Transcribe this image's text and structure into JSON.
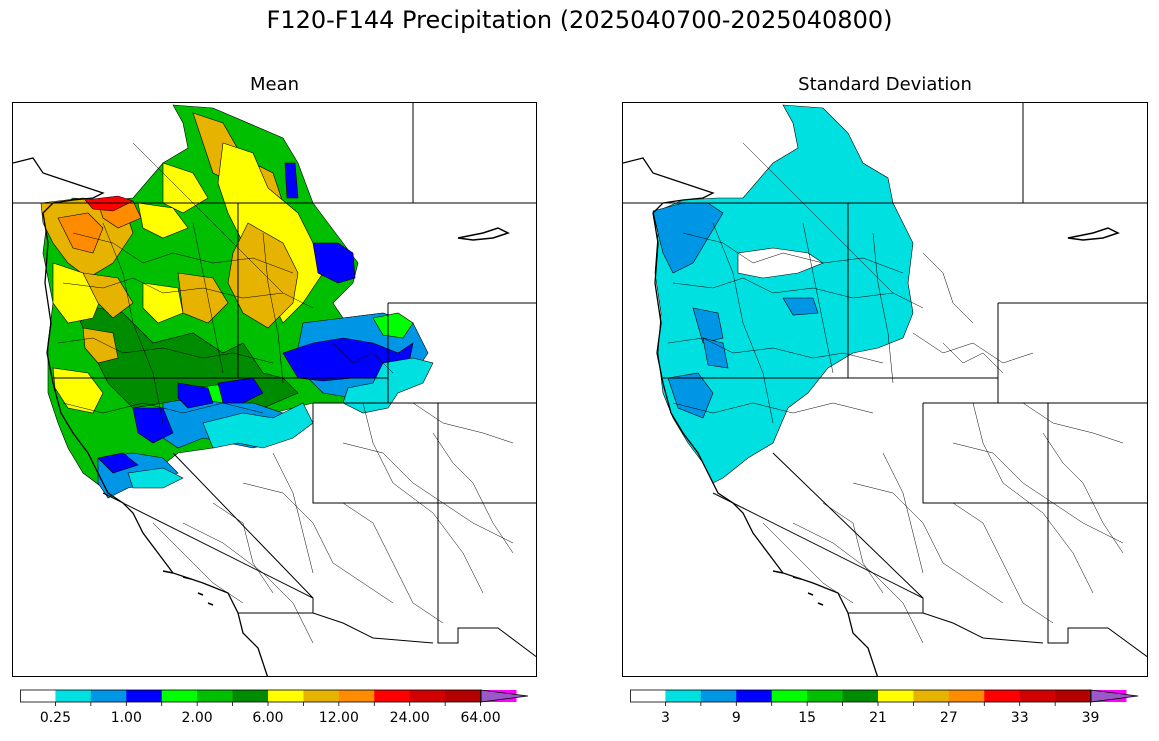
{
  "figure": {
    "title": "F120-F144 Precipitation (2025040700-2025040800)"
  },
  "panels": [
    {
      "id": "mean",
      "title": "Mean",
      "colorbar": {
        "colors": [
          "#ffffff",
          "#00e0e0",
          "#0096e6",
          "#0000ff",
          "#00ff00",
          "#00be00",
          "#008c00",
          "#ffff00",
          "#e6b400",
          "#ff8c00",
          "#ff0000",
          "#d20000",
          "#b40000",
          "#ff00ff",
          "#9b59c8"
        ],
        "tick_labels": [
          "0.25",
          "1.00",
          "2.00",
          "6.00",
          "12.00",
          "24.00",
          "64.00"
        ],
        "extend": "max"
      }
    },
    {
      "id": "std",
      "title": "Standard Deviation",
      "colorbar": {
        "colors": [
          "#ffffff",
          "#00e0e0",
          "#0096e6",
          "#0000ff",
          "#00ff00",
          "#00be00",
          "#008c00",
          "#ffff00",
          "#e6b400",
          "#ff8c00",
          "#ff0000",
          "#d20000",
          "#b40000",
          "#ff00ff",
          "#9b59c8"
        ],
        "tick_labels": [
          "3",
          "9",
          "15",
          "21",
          "27",
          "33",
          "39"
        ],
        "extend": "max"
      }
    }
  ]
}
